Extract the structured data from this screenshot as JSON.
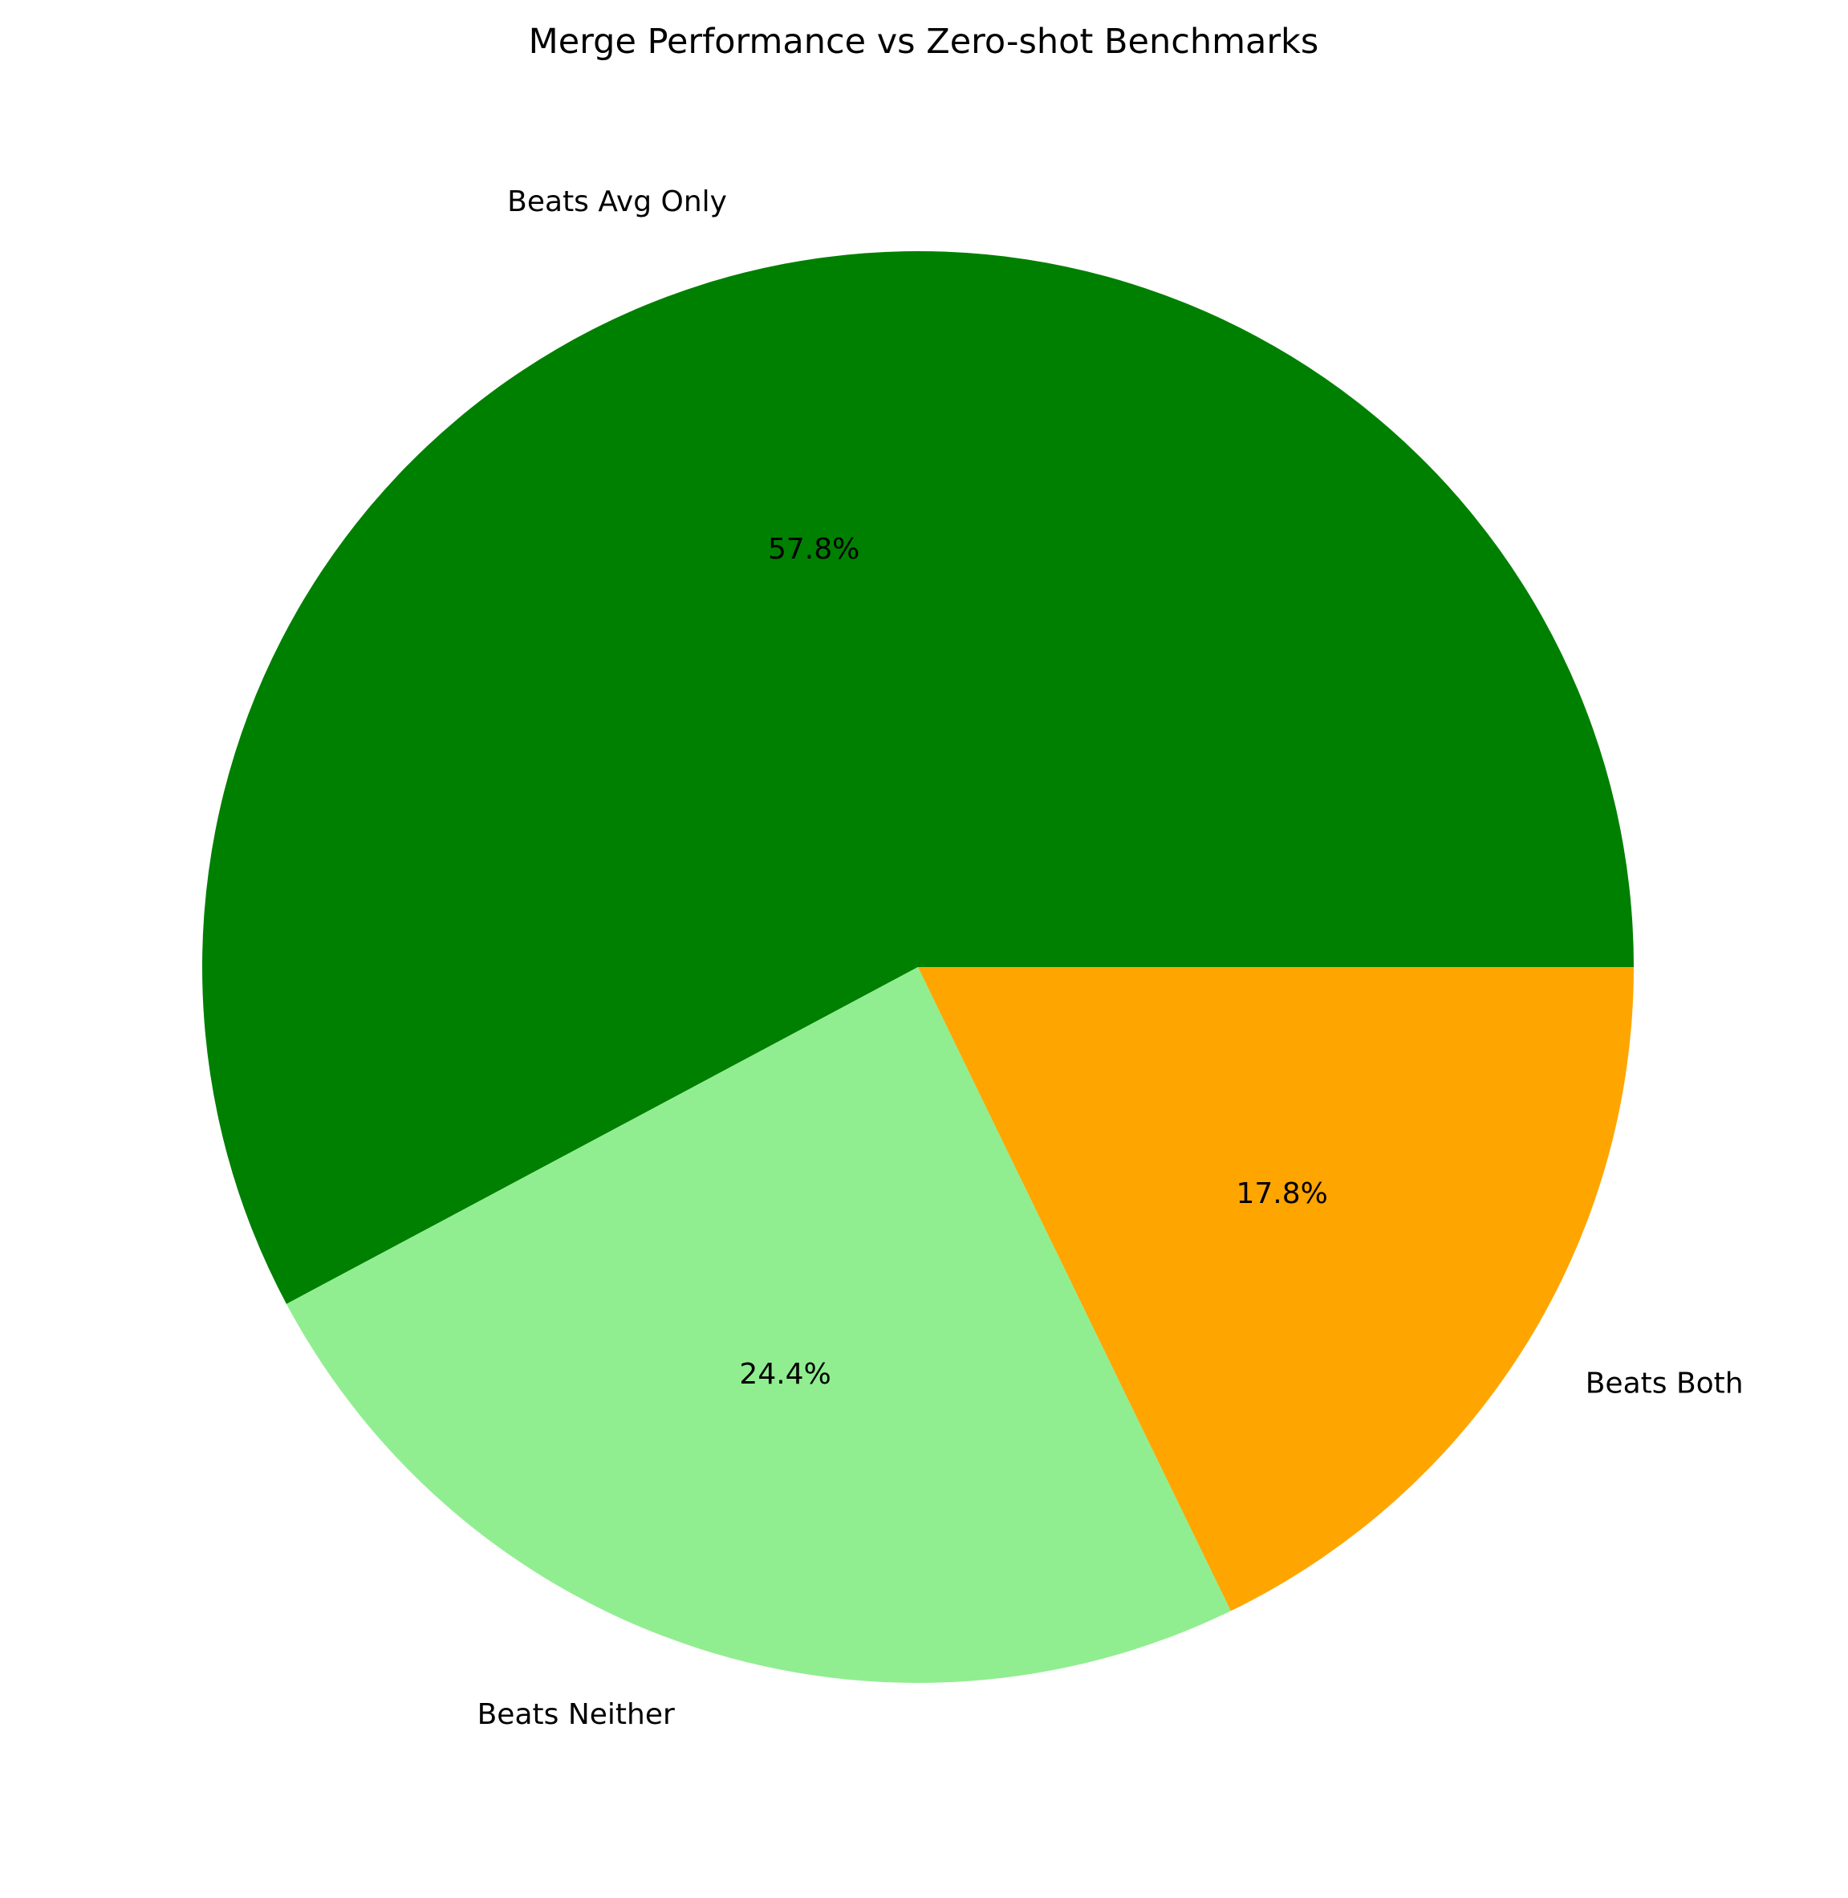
{
  "chart_data": {
    "type": "pie",
    "title": "Merge Performance vs Zero-shot Benchmarks",
    "slices": [
      {
        "label": "Beats Avg Only",
        "value": 57.8,
        "pct_label": "57.8%",
        "color": "#008000"
      },
      {
        "label": "Beats Neither",
        "value": 24.4,
        "pct_label": "24.4%",
        "color": "#90ee90"
      },
      {
        "label": "Beats Both",
        "value": 17.8,
        "pct_label": "17.8%",
        "color": "#ffa500"
      }
    ],
    "start_angle_deg": 0,
    "direction": "counterclockwise",
    "legend": "none"
  }
}
